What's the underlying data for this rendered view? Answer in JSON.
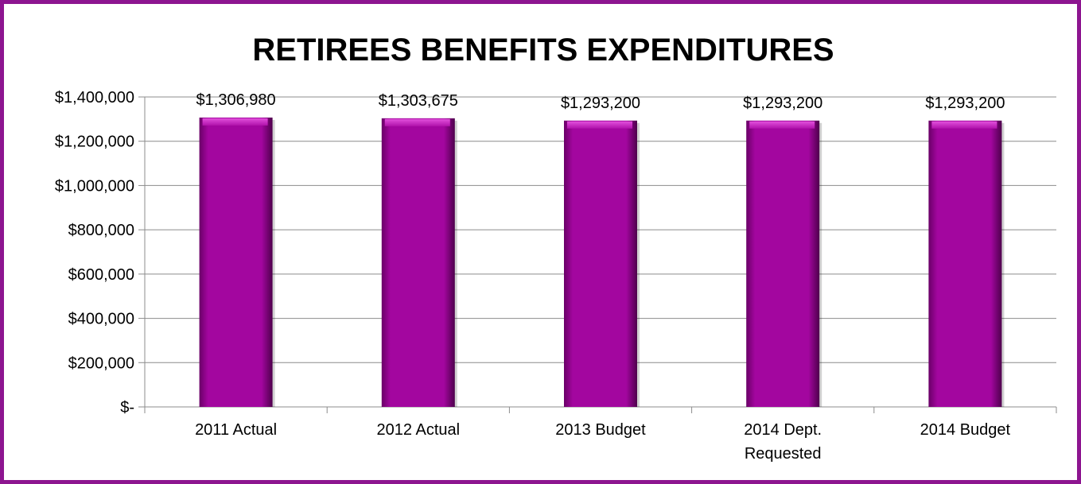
{
  "chart_data": {
    "type": "bar",
    "title": "RETIREES BENEFITS EXPENDITURES",
    "categories": [
      "2011 Actual",
      "2012 Actual",
      "2013 Budget",
      "2014 Dept. Requested",
      "2014 Budget"
    ],
    "values": [
      1306980,
      1303675,
      1293200,
      1293200,
      1293200
    ],
    "data_labels": [
      "$1,306,980",
      "$1,303,675",
      "$1,293,200",
      "$1,293,200",
      "$1,293,200"
    ],
    "ylim": [
      0,
      1400000
    ],
    "yticks": [
      0,
      200000,
      400000,
      600000,
      800000,
      1000000,
      1200000,
      1400000
    ],
    "ytick_labels": [
      "$-",
      "$200,000",
      "$400,000",
      "$600,000",
      "$800,000",
      "$1,000,000",
      "$1,200,000",
      "$1,400,000"
    ],
    "grid": true,
    "legend": "none",
    "xlabel": "",
    "ylabel": ""
  },
  "colors": {
    "frame": "#8d1590",
    "bar": "#a3069f",
    "bar_dark": "#5a0057",
    "bar_light": "#d23ccd",
    "grid": "#8c8c8c"
  }
}
